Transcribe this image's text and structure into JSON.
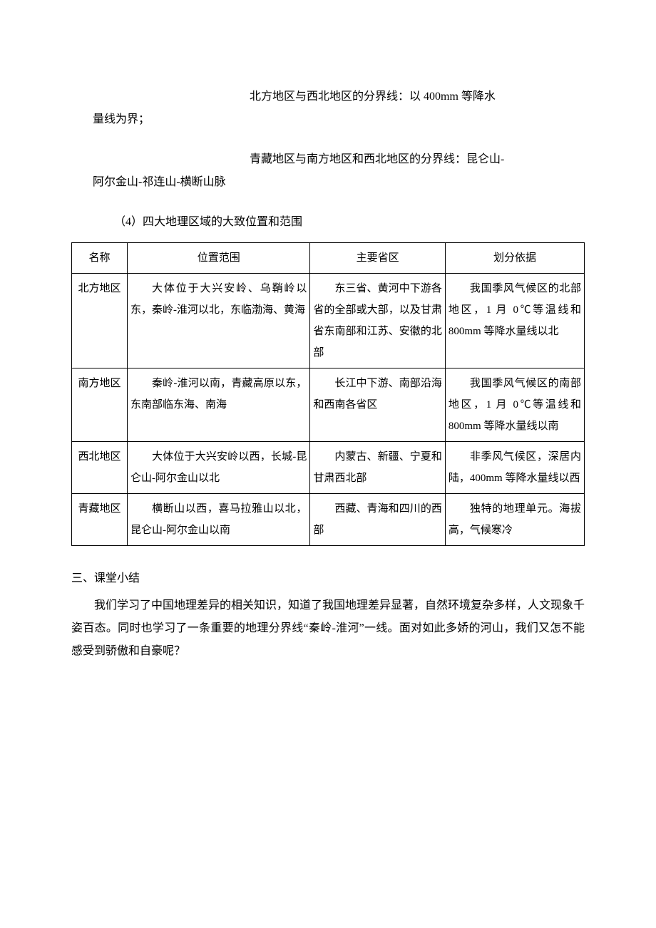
{
  "paragraphs": {
    "p1_line1": "北方地区与西北地区的分界线：以 400mm 等降水",
    "p1_line2": "量线为界；",
    "p2_line1": "青藏地区与南方地区和西北地区的分界线：昆仑山-",
    "p2_line2": "阿尔金山-祁连山-横断山脉",
    "p3": "（4）四大地理区域的大致位置和范围"
  },
  "table": {
    "headers": [
      "名称",
      "位置范围",
      "主要省区",
      "划分依据"
    ],
    "rows": [
      {
        "name": "北方地区",
        "location": "大体位于大兴安岭、乌鞘岭以东，秦岭-淮河以北，东临渤海、黄海",
        "provinces": "东三省、黄河中下游各省的全部或大部，以及甘肃省东南部和江苏、安徽的北部",
        "basis": "我国季风气候区的北部地区，1 月 0℃等温线和 800mm 等降水量线以北"
      },
      {
        "name": "南方地区",
        "location": "秦岭-淮河以南，青藏高原以东，东南部临东海、南海",
        "provinces": "长江中下游、南部沿海和西南各省区",
        "basis": "我国季风气候区的南部地区，1 月 0℃等温线和 800mm 等降水量线以南"
      },
      {
        "name": "西北地区",
        "location": "大体位于大兴安岭以西，长城-昆仑山-阿尔金山以北",
        "provinces": "内蒙古、新疆、宁夏和甘肃西北部",
        "basis": "非季风气候区，深居内陆，400mm 等降水量线以西"
      },
      {
        "name": "青藏地区",
        "location": "横断山以西，喜马拉雅山以北，昆仑山-阿尔金山以南",
        "provinces": "西藏、青海和四川的西部",
        "basis": "独特的地理单元。海拔高，气候寒冷"
      }
    ]
  },
  "summary": {
    "heading": "三、课堂小结",
    "body": "我们学习了中国地理差异的相关知识，知道了我国地理差异显著，自然环境复杂多样，人文现象千姿百态。同时也学习了一条重要的地理分界线“秦岭-淮河”一线。面对如此多娇的河山，我们又怎不能感受到骄傲和自豪呢？"
  },
  "colors": {
    "text": "#000000",
    "background": "#ffffff",
    "border": "#000000"
  },
  "typography": {
    "font_family": "SimSun",
    "body_fontsize": 16,
    "table_fontsize": 15,
    "line_height": 2.0
  }
}
